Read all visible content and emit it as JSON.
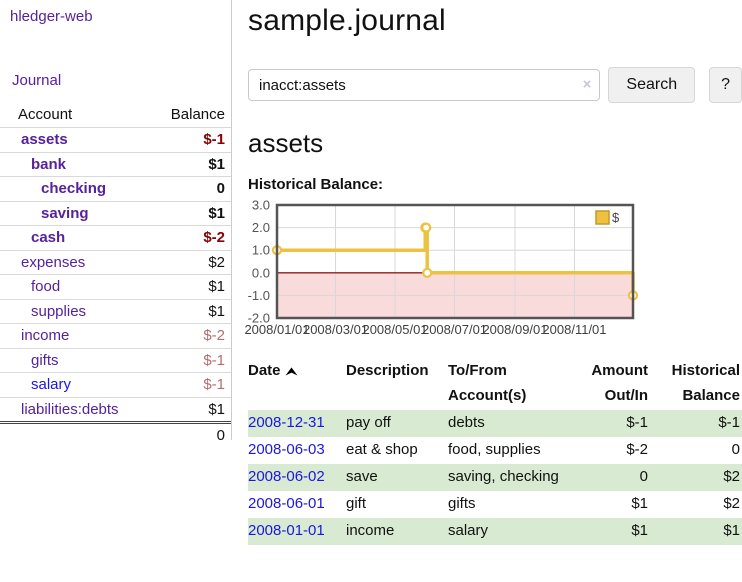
{
  "app": {
    "brand": "hledger-web"
  },
  "sidebar": {
    "nav_journal": "Journal",
    "header": {
      "account": "Account",
      "balance": "Balance"
    },
    "accounts": [
      {
        "name": "assets",
        "depth": 1,
        "balance": "$-1",
        "bold": true,
        "neg": true
      },
      {
        "name": "bank",
        "depth": 2,
        "balance": "$1",
        "bold": true
      },
      {
        "name": "checking",
        "depth": 3,
        "balance": "0",
        "bold": true
      },
      {
        "name": "saving",
        "depth": 3,
        "balance": "$1",
        "bold": true
      },
      {
        "name": "cash",
        "depth": 2,
        "balance": "$-2",
        "bold": true,
        "neg": true
      },
      {
        "name": "expenses",
        "depth": 1,
        "balance": "$2"
      },
      {
        "name": "food",
        "depth": 2,
        "balance": "$1"
      },
      {
        "name": "supplies",
        "depth": 2,
        "balance": "$1"
      },
      {
        "name": "income",
        "depth": 1,
        "balance": "$-2",
        "neg_soft": true
      },
      {
        "name": "gifts",
        "depth": 2,
        "balance": "$-1",
        "neg_soft": true
      },
      {
        "name": "salary",
        "depth": 2,
        "balance": "$-1",
        "neg_soft": true,
        "blue": true
      },
      {
        "name": "liabilities:debts",
        "depth": 1,
        "balance": "$1"
      }
    ],
    "total": "0"
  },
  "header": {
    "title": "sample.journal"
  },
  "search": {
    "value": "inacct:assets",
    "clear_icon": "×",
    "button_label": "Search",
    "help_label": "?"
  },
  "account_page": {
    "title": "assets",
    "chart_label": "Historical Balance:"
  },
  "chart_data": {
    "type": "line",
    "step": true,
    "title": "Historical Balance:",
    "series": [
      {
        "name": "$",
        "color": "#edc240",
        "points": [
          [
            "2008-01-01",
            1
          ],
          [
            "2008-06-01",
            2
          ],
          [
            "2008-06-02",
            2
          ],
          [
            "2008-06-03",
            0
          ],
          [
            "2008-12-31",
            -1
          ]
        ]
      }
    ],
    "ylim": [
      -2,
      3
    ],
    "yticks": [
      3.0,
      2.0,
      1.0,
      0.0,
      -1.0,
      -2.0
    ],
    "xticks": [
      "2008/01/01",
      "2008/03/01",
      "2008/05/01",
      "2008/07/01",
      "2008/09/01",
      "2008/11/01"
    ],
    "x_range": [
      "2008-01-01",
      "2008-12-31"
    ],
    "grid": true,
    "legend_position": "top-right",
    "legend_label": "$",
    "negative_fill": "#fadbdb",
    "zero_line_color": "#8f1f1f",
    "axis_color": "#545454",
    "border_color": "#545454",
    "grid_color": "#d8d8d8"
  },
  "register": {
    "columns": [
      {
        "label": "Date"
      },
      {
        "label": "Description"
      },
      {
        "label": "To/From Account(s)"
      },
      {
        "label": "Amount Out/In"
      },
      {
        "label": "Historical Balance"
      }
    ],
    "rows": [
      {
        "date": "2008-12-31",
        "description": "pay off",
        "accounts": "debts",
        "amount": "$-1",
        "balance": "$-1",
        "amount_neg": true,
        "balance_neg": true,
        "green": true
      },
      {
        "date": "2008-06-03",
        "description": "eat & shop",
        "accounts": "food, supplies",
        "amount": "$-2",
        "balance": "0",
        "amount_neg": true
      },
      {
        "date": "2008-06-02",
        "description": "save",
        "accounts": "saving, checking",
        "amount": "0",
        "balance": "$2",
        "green": true
      },
      {
        "date": "2008-06-01",
        "description": "gift",
        "accounts": "gifts",
        "amount": "$1",
        "balance": "$2"
      },
      {
        "date": "2008-01-01",
        "description": "income",
        "accounts": "salary",
        "amount": "$1",
        "balance": "$1",
        "green": true
      }
    ]
  }
}
